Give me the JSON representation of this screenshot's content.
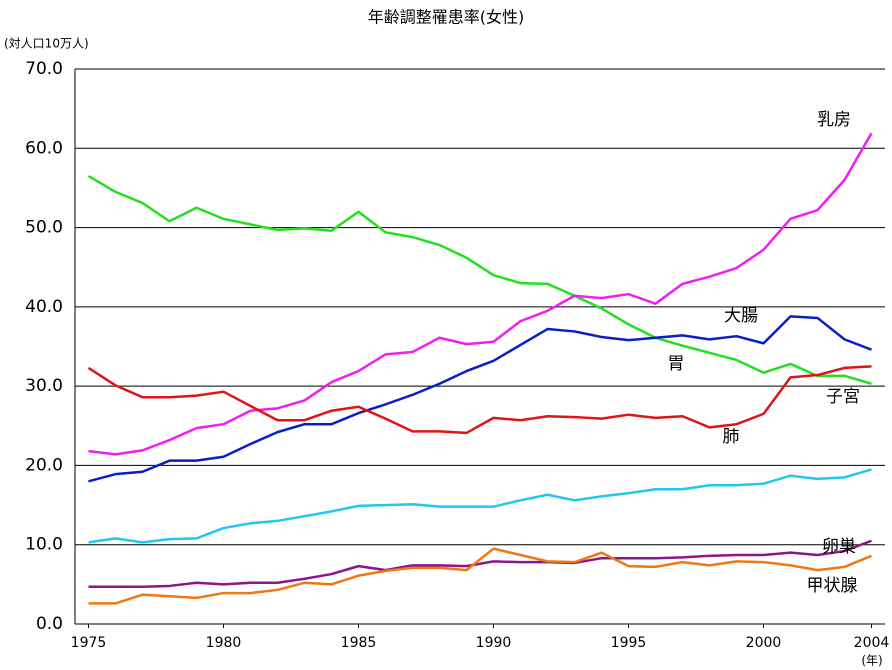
{
  "chart_data": {
    "type": "line",
    "title": "年齢調整罹患率(女性)",
    "y_label": "(対人口10万人)",
    "x_label": "(年)",
    "x": [
      1975,
      1976,
      1977,
      1978,
      1979,
      1980,
      1981,
      1982,
      1983,
      1984,
      1985,
      1986,
      1987,
      1988,
      1989,
      1990,
      1991,
      1992,
      1993,
      1994,
      1995,
      1996,
      1997,
      1998,
      1999,
      2000,
      2001,
      2002,
      2003,
      2004
    ],
    "xlim": [
      1974.5,
      2004.5
    ],
    "xticks": [
      1975,
      1980,
      1985,
      1990,
      1995,
      2000,
      2004
    ],
    "ylim": [
      0,
      70
    ],
    "yticks": [
      {
        "value": 0,
        "label": "0.0"
      },
      {
        "value": 10,
        "label": "10.0"
      },
      {
        "value": 20,
        "label": "20.0"
      },
      {
        "value": 30,
        "label": "30.0"
      },
      {
        "value": 40,
        "label": "40.0"
      },
      {
        "value": 50,
        "label": "50.0"
      },
      {
        "value": 60,
        "label": "60.0"
      },
      {
        "value": 70,
        "label": "70.0"
      }
    ],
    "grid": true,
    "series": [
      {
        "name": "胃",
        "color": "#22e01e",
        "values": [
          56.5,
          54.5,
          53.1,
          50.8,
          52.5,
          51.1,
          50.4,
          49.7,
          49.9,
          49.6,
          52.0,
          49.4,
          48.8,
          47.8,
          46.2,
          44.0,
          43.0,
          42.9,
          41.4,
          39.8,
          37.8,
          36.1,
          35.1,
          34.2,
          33.3,
          31.7,
          32.8,
          31.3,
          31.3,
          30.3
        ]
      },
      {
        "name": "乳房",
        "color": "#f01ef0",
        "values": [
          21.8,
          21.4,
          21.9,
          23.2,
          24.7,
          25.2,
          26.9,
          27.2,
          28.2,
          30.5,
          31.9,
          34.0,
          34.3,
          36.1,
          35.3,
          35.6,
          38.2,
          39.5,
          41.4,
          41.1,
          41.6,
          40.4,
          42.9,
          43.8,
          44.9,
          47.2,
          51.1,
          52.2,
          56.0,
          61.9
        ]
      },
      {
        "name": "大腸",
        "color": "#0a1ec8",
        "values": [
          18.0,
          18.9,
          19.2,
          20.6,
          20.6,
          21.1,
          22.7,
          24.2,
          25.2,
          25.2,
          26.6,
          27.7,
          28.9,
          30.3,
          31.9,
          33.2,
          35.2,
          37.2,
          36.9,
          36.2,
          35.8,
          36.1,
          36.4,
          35.9,
          36.3,
          35.4,
          38.8,
          38.6,
          35.9,
          34.6
        ]
      },
      {
        "name": "肺",
        "color": "#e01414",
        "values": [
          32.3,
          30.1,
          28.6,
          28.6,
          28.8,
          29.3,
          27.5,
          25.7,
          25.7,
          26.9,
          27.4,
          25.9,
          24.3,
          24.3,
          24.1,
          26.0,
          25.7,
          26.2,
          26.1,
          25.9,
          26.4,
          26.0,
          26.2,
          24.8,
          25.2,
          26.5,
          31.1,
          31.4,
          32.3,
          32.5
        ]
      },
      {
        "name": "子宮",
        "color": "#1ec8f0",
        "values": [
          10.3,
          10.8,
          10.3,
          10.7,
          10.8,
          12.1,
          12.7,
          13.0,
          13.6,
          14.2,
          14.9,
          15.0,
          15.1,
          14.8,
          14.8,
          14.8,
          15.6,
          16.3,
          15.6,
          16.1,
          16.5,
          17.0,
          17.0,
          17.5,
          17.5,
          17.7,
          18.7,
          18.3,
          18.5,
          19.5
        ]
      },
      {
        "name": "卵巣",
        "color": "#8c148c",
        "values": [
          4.7,
          4.7,
          4.7,
          4.8,
          5.2,
          5.0,
          5.2,
          5.2,
          5.7,
          6.3,
          7.3,
          6.8,
          7.4,
          7.4,
          7.3,
          7.9,
          7.8,
          7.8,
          7.7,
          8.3,
          8.3,
          8.3,
          8.4,
          8.6,
          8.7,
          8.7,
          9.0,
          8.7,
          9.2,
          10.5
        ]
      },
      {
        "name": "甲状腺",
        "color": "#f07814",
        "values": [
          2.6,
          2.6,
          3.7,
          3.5,
          3.3,
          3.9,
          3.9,
          4.3,
          5.2,
          5.0,
          6.1,
          6.7,
          7.1,
          7.1,
          6.8,
          9.5,
          8.7,
          7.9,
          7.8,
          9.0,
          7.3,
          7.2,
          7.8,
          7.4,
          7.9,
          7.8,
          7.4,
          6.8,
          7.2,
          8.6
        ]
      }
    ]
  }
}
